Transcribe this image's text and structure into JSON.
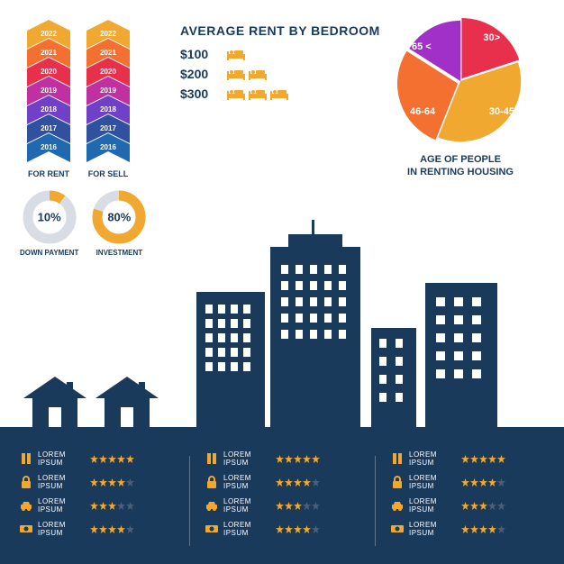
{
  "colors": {
    "primary": "#1a3a5c",
    "accent": "#f0a830",
    "white": "#ffffff",
    "arrow_gradient": [
      "#f0a830",
      "#f47030",
      "#e8304c",
      "#c030a0",
      "#7040c8",
      "#3050a0",
      "#2068b0"
    ]
  },
  "year_arrows": {
    "columns": [
      {
        "label": "FOR RENT",
        "years": [
          "2022",
          "2021",
          "2020",
          "2019",
          "2018",
          "2017",
          "2016"
        ]
      },
      {
        "label": "FOR SELL",
        "years": [
          "2022",
          "2021",
          "2020",
          "2019",
          "2018",
          "2017",
          "2016"
        ]
      }
    ]
  },
  "donuts": [
    {
      "label": "DOWN PAYMENT",
      "percent": 10,
      "color": "#f0a830"
    },
    {
      "label": "INVESTMENT",
      "percent": 80,
      "color": "#f0a830"
    }
  ],
  "rent": {
    "title": "AVERAGE RENT BY BEDROOM",
    "rows": [
      {
        "price": "$100",
        "beds": 1
      },
      {
        "price": "$200",
        "beds": 2
      },
      {
        "price": "$300",
        "beds": 3
      }
    ],
    "bed_color": "#f0a830"
  },
  "pie": {
    "caption": "AGE OF PEOPLE\nIN RENTING HOUSING",
    "slices": [
      {
        "label": "30>",
        "value": 20,
        "color": "#e8304c"
      },
      {
        "label": "30-45",
        "value": 36,
        "color": "#f0a830"
      },
      {
        "label": "46-64",
        "value": 28,
        "color": "#f47030"
      },
      {
        "label": "65 <",
        "value": 16,
        "color": "#a030c8"
      }
    ]
  },
  "ratings": {
    "columns": 3,
    "items": [
      {
        "icon": "pause",
        "text": "LOREM IPSUM",
        "stars": 5
      },
      {
        "icon": "lock",
        "text": "LOREM IPSUM",
        "stars": 4
      },
      {
        "icon": "car",
        "text": "LOREM IPSUM",
        "stars": 3
      },
      {
        "icon": "money",
        "text": "LOREM IPSUM",
        "stars": 4
      }
    ],
    "icon_color": "#f0a830",
    "star_filled": "#f0a830",
    "star_empty": "#4a5f7a"
  }
}
